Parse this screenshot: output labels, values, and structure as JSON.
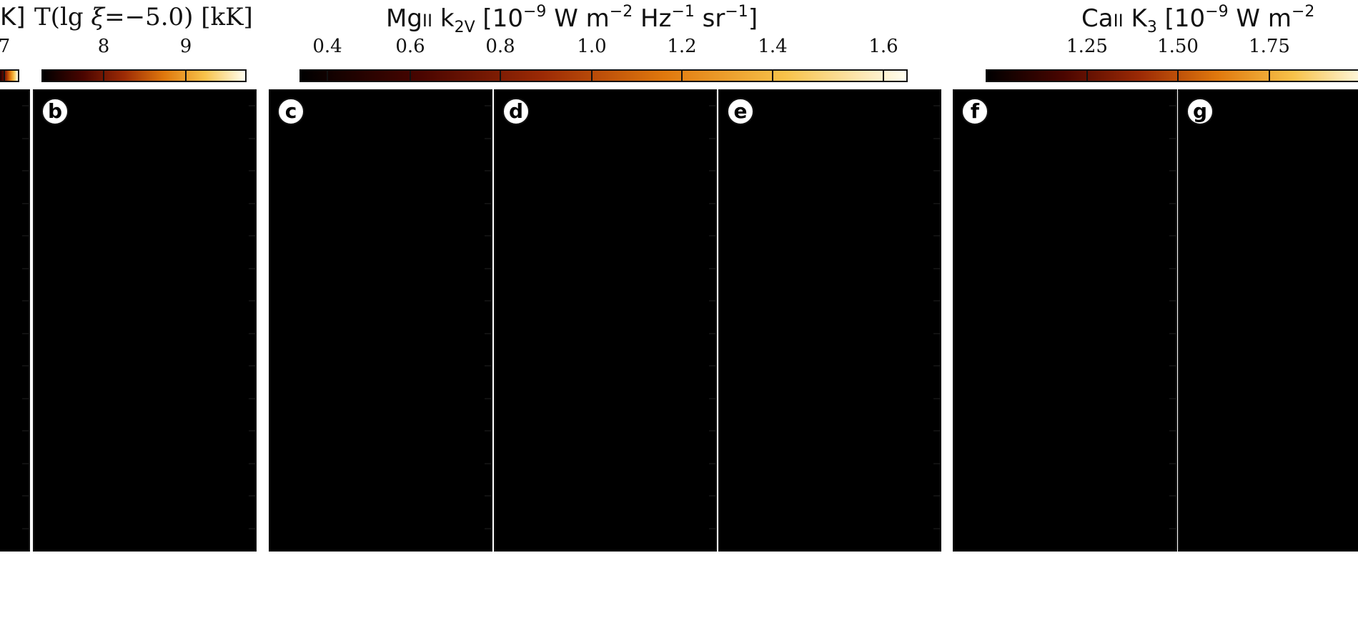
{
  "colorbars": [
    {
      "title": [
        "K]"
      ],
      "ticks": [
        "7"
      ]
    },
    {
      "title": [
        "T(lg ",
        "ξ",
        "=−5.0) [kK]"
      ],
      "ticks": [
        "8",
        "9"
      ]
    },
    {
      "title": [
        "Mg",
        "II",
        " k",
        "2V",
        " [10",
        "−9",
        " W m",
        "−2",
        " Hz",
        "−1",
        " sr",
        "−1",
        "]"
      ],
      "ticks": [
        "0.4",
        "0.6",
        "0.8",
        "1.0",
        "1.2",
        "1.4",
        "1.6"
      ]
    },
    {
      "title": [
        "Ca",
        "II",
        " K",
        "3",
        " [10",
        "−9",
        " W m",
        "−2"
      ],
      "ticks": [
        "1.25",
        "1.50",
        "1.75"
      ]
    }
  ],
  "panels": {
    "labels": [
      "b",
      "c",
      "d",
      "e",
      "f",
      "g"
    ]
  }
}
